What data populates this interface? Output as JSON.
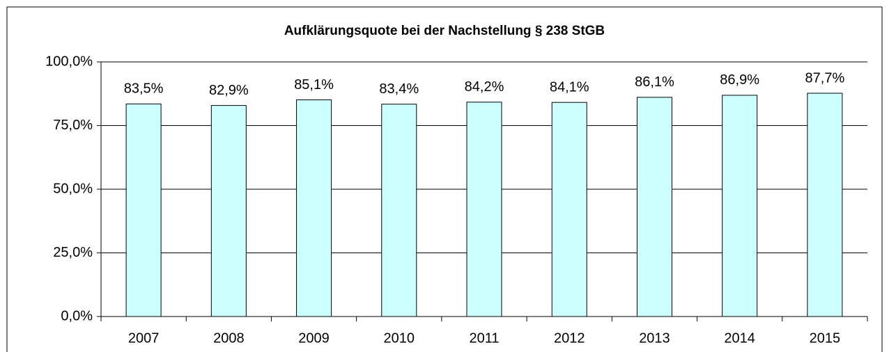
{
  "chart_data": {
    "type": "bar",
    "title": "Aufklärungsquote bei der Nachstellung § 238 StGB",
    "categories": [
      "2007",
      "2008",
      "2009",
      "2010",
      "2011",
      "2012",
      "2013",
      "2014",
      "2015"
    ],
    "values": [
      83.5,
      82.9,
      85.1,
      83.4,
      84.2,
      84.1,
      86.1,
      86.9,
      87.7
    ],
    "value_labels": [
      "83,5%",
      "82,9%",
      "85,1%",
      "83,4%",
      "84,2%",
      "84,1%",
      "86,1%",
      "86,9%",
      "87,7%"
    ],
    "color": "#ccffff",
    "ylim": [
      0,
      100
    ],
    "yticks": [
      {
        "value": 0,
        "label": "0,0%"
      },
      {
        "value": 25,
        "label": "25,0%"
      },
      {
        "value": 50,
        "label": "50,0%"
      },
      {
        "value": 75,
        "label": "75,0%"
      },
      {
        "value": 100,
        "label": "100,0%"
      }
    ],
    "grid": true
  }
}
